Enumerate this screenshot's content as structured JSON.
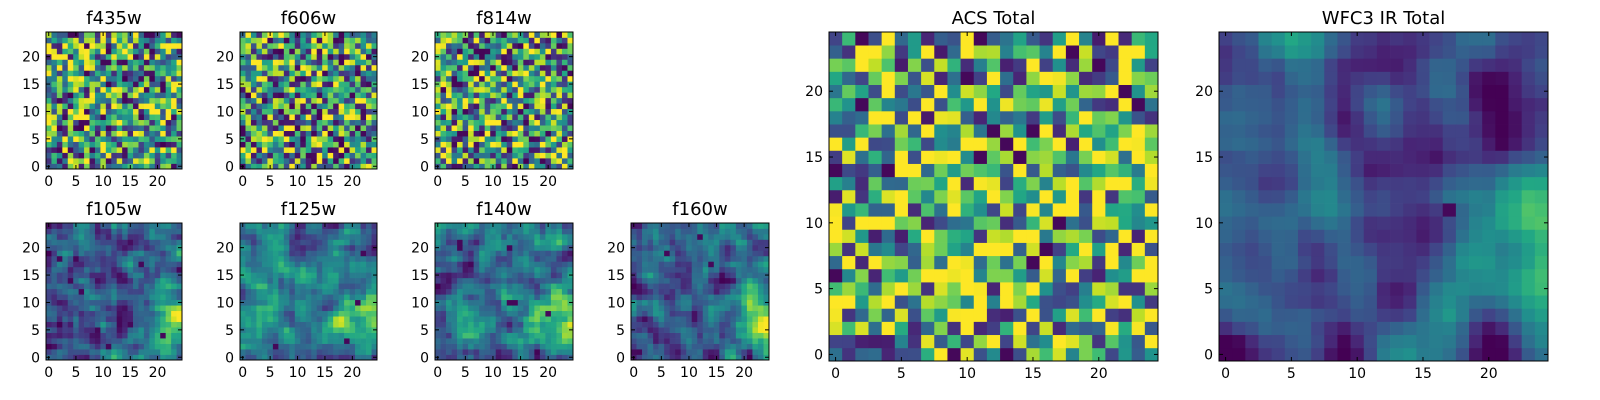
{
  "figure": {
    "background": "#ffffff",
    "colormap": "viridis"
  },
  "chart_data": [
    {
      "type": "heatmap",
      "title": "f435w",
      "grid_size": 25,
      "seed": 11,
      "smooth": 0,
      "gradient": 0,
      "bias": 0.55,
      "x_ticks": [
        "0",
        "5",
        "10",
        "15",
        "20"
      ],
      "y_ticks": [
        "0",
        "5",
        "10",
        "15",
        "20"
      ]
    },
    {
      "type": "heatmap",
      "title": "f606w",
      "grid_size": 25,
      "seed": 23,
      "smooth": 0,
      "gradient": 0,
      "bias": 0.55,
      "x_ticks": [
        "0",
        "5",
        "10",
        "15",
        "20"
      ],
      "y_ticks": [
        "0",
        "5",
        "10",
        "15",
        "20"
      ]
    },
    {
      "type": "heatmap",
      "title": "f814w",
      "grid_size": 25,
      "seed": 37,
      "smooth": 0,
      "gradient": 0,
      "bias": 0.55,
      "x_ticks": [
        "0",
        "5",
        "10",
        "15",
        "20"
      ],
      "y_ticks": [
        "0",
        "5",
        "10",
        "15",
        "20"
      ]
    },
    {
      "type": "heatmap",
      "title": "f105w",
      "grid_size": 25,
      "seed": 41,
      "smooth": 1,
      "gradient": 0.55,
      "bias": 0.32,
      "x_ticks": [
        "0",
        "5",
        "10",
        "15",
        "20"
      ],
      "y_ticks": [
        "0",
        "5",
        "10",
        "15",
        "20"
      ]
    },
    {
      "type": "heatmap",
      "title": "f125w",
      "grid_size": 25,
      "seed": 53,
      "smooth": 1,
      "gradient": 0.55,
      "bias": 0.38,
      "x_ticks": [
        "0",
        "5",
        "10",
        "15",
        "20"
      ],
      "y_ticks": [
        "0",
        "5",
        "10",
        "15",
        "20"
      ]
    },
    {
      "type": "heatmap",
      "title": "f140w",
      "grid_size": 25,
      "seed": 67,
      "smooth": 1,
      "gradient": 0.55,
      "bias": 0.35,
      "x_ticks": [
        "0",
        "5",
        "10",
        "15",
        "20"
      ],
      "y_ticks": [
        "0",
        "5",
        "10",
        "15",
        "20"
      ]
    },
    {
      "type": "heatmap",
      "title": "f160w",
      "grid_size": 25,
      "seed": 79,
      "smooth": 1,
      "gradient": 0.55,
      "bias": 0.28,
      "x_ticks": [
        "0",
        "5",
        "10",
        "15",
        "20"
      ],
      "y_ticks": [
        "0",
        "5",
        "10",
        "15",
        "20"
      ]
    },
    {
      "type": "heatmap",
      "title": "ACS Total",
      "grid_size": 25,
      "seed": 97,
      "smooth": 0,
      "gradient": 0,
      "bias": 0.62,
      "x_ticks": [
        "0",
        "5",
        "10",
        "15",
        "20"
      ],
      "y_ticks": [
        "0",
        "5",
        "10",
        "15",
        "20"
      ]
    },
    {
      "type": "heatmap",
      "title": "WFC3 IR Total",
      "grid_size": 25,
      "seed": 131,
      "smooth": 2,
      "gradient": 0.6,
      "bias": 0.22,
      "x_ticks": [
        "0",
        "5",
        "10",
        "15",
        "20"
      ],
      "y_ticks": [
        "0",
        "5",
        "10",
        "15",
        "20"
      ]
    }
  ]
}
